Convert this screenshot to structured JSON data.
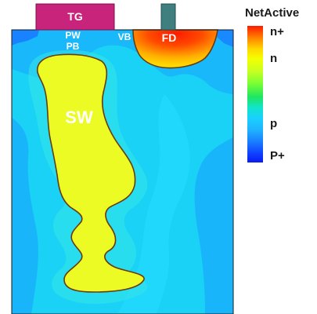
{
  "figure": {
    "labels": {
      "tg": "TG",
      "pw": "PW",
      "pb": "PB",
      "vb": "VB",
      "fd": "FD",
      "sw": "SW"
    },
    "colors": {
      "tg_gate": "#c8247c",
      "fd_gate": "#3f7f80",
      "background": "#19d2f5",
      "substrate_blue": "#1a9cff",
      "deep_p": "#1050ff",
      "n_region": "#f0ff26",
      "n_plus": "#ff1a00",
      "n_transition": "#ffd000",
      "label_text": "#ffffff"
    }
  },
  "legend": {
    "title": "NetActive",
    "levels": [
      "n+",
      "n",
      "p",
      "P+"
    ],
    "top_color": "#ff1a00",
    "bottom_color": "#0a1cf0"
  }
}
